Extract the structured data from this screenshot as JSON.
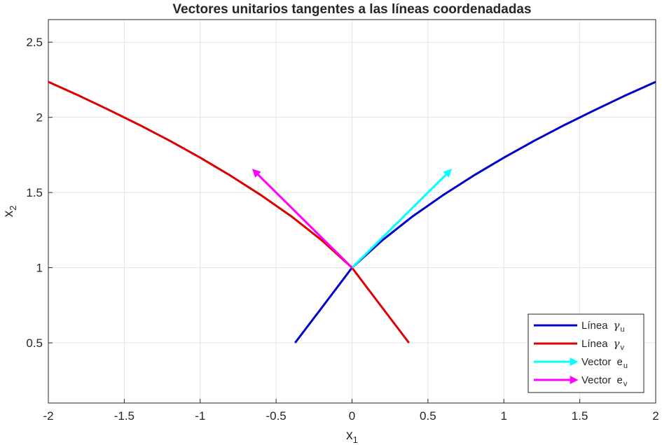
{
  "chart_data": {
    "type": "line",
    "title": "Vectores unitarios tangentes a las líneas coordenadadas",
    "xlabel": {
      "main": "x",
      "sub": "1"
    },
    "ylabel": {
      "main": "x",
      "sub": "2"
    },
    "xlim": [
      -2,
      2
    ],
    "ylim": [
      0.1,
      2.65
    ],
    "xticks": [
      -2,
      -1.5,
      -1,
      -0.5,
      0,
      0.5,
      1,
      1.5,
      2
    ],
    "xticklabels": [
      "-2",
      "-1.5",
      "-1",
      "-0.5",
      "0",
      "0.5",
      "1",
      "1.5",
      "2"
    ],
    "yticks": [
      0.5,
      1,
      1.5,
      2,
      2.5
    ],
    "yticklabels": [
      "0.5",
      "1",
      "1.5",
      "2",
      "2.5"
    ],
    "grid": true,
    "legend_position": "bottom-right",
    "series": [
      {
        "name": "Línea γu",
        "legend_prefix": "Línea",
        "legend_symbol": "γ",
        "legend_sub": "u",
        "kind": "line",
        "color": "#0000cc",
        "x": [
          -0.375,
          -0.3,
          -0.2,
          -0.1,
          0,
          0.2,
          0.4,
          0.6,
          0.8,
          1.0,
          1.2,
          1.4,
          1.6,
          1.8,
          2.0
        ],
        "y": [
          0.5,
          0.6,
          0.733,
          0.866,
          1.0,
          1.183,
          1.342,
          1.483,
          1.612,
          1.732,
          1.844,
          1.949,
          2.049,
          2.145,
          2.236
        ]
      },
      {
        "name": "Línea γv",
        "legend_prefix": "Línea",
        "legend_symbol": "γ",
        "legend_sub": "v",
        "kind": "line",
        "color": "#dd0000",
        "x": [
          0.375,
          0.3,
          0.2,
          0.1,
          0,
          -0.2,
          -0.4,
          -0.6,
          -0.8,
          -1.0,
          -1.2,
          -1.4,
          -1.6,
          -1.8,
          -2.0
        ],
        "y": [
          0.5,
          0.6,
          0.733,
          0.866,
          1.0,
          1.183,
          1.342,
          1.483,
          1.612,
          1.732,
          1.844,
          1.949,
          2.049,
          2.145,
          2.236
        ]
      },
      {
        "name": "Vector eu",
        "legend_prefix": "Vector",
        "legend_symbol": "e",
        "legend_sub": "u",
        "kind": "arrow",
        "color": "#00ffff",
        "x": [
          0,
          0.646
        ],
        "y": [
          1,
          1.646
        ]
      },
      {
        "name": "Vector ev",
        "legend_prefix": "Vector",
        "legend_symbol": "e",
        "legend_sub": "v",
        "kind": "arrow",
        "color": "#ff00ff",
        "x": [
          0,
          -0.646
        ],
        "y": [
          1,
          1.646
        ]
      }
    ]
  }
}
